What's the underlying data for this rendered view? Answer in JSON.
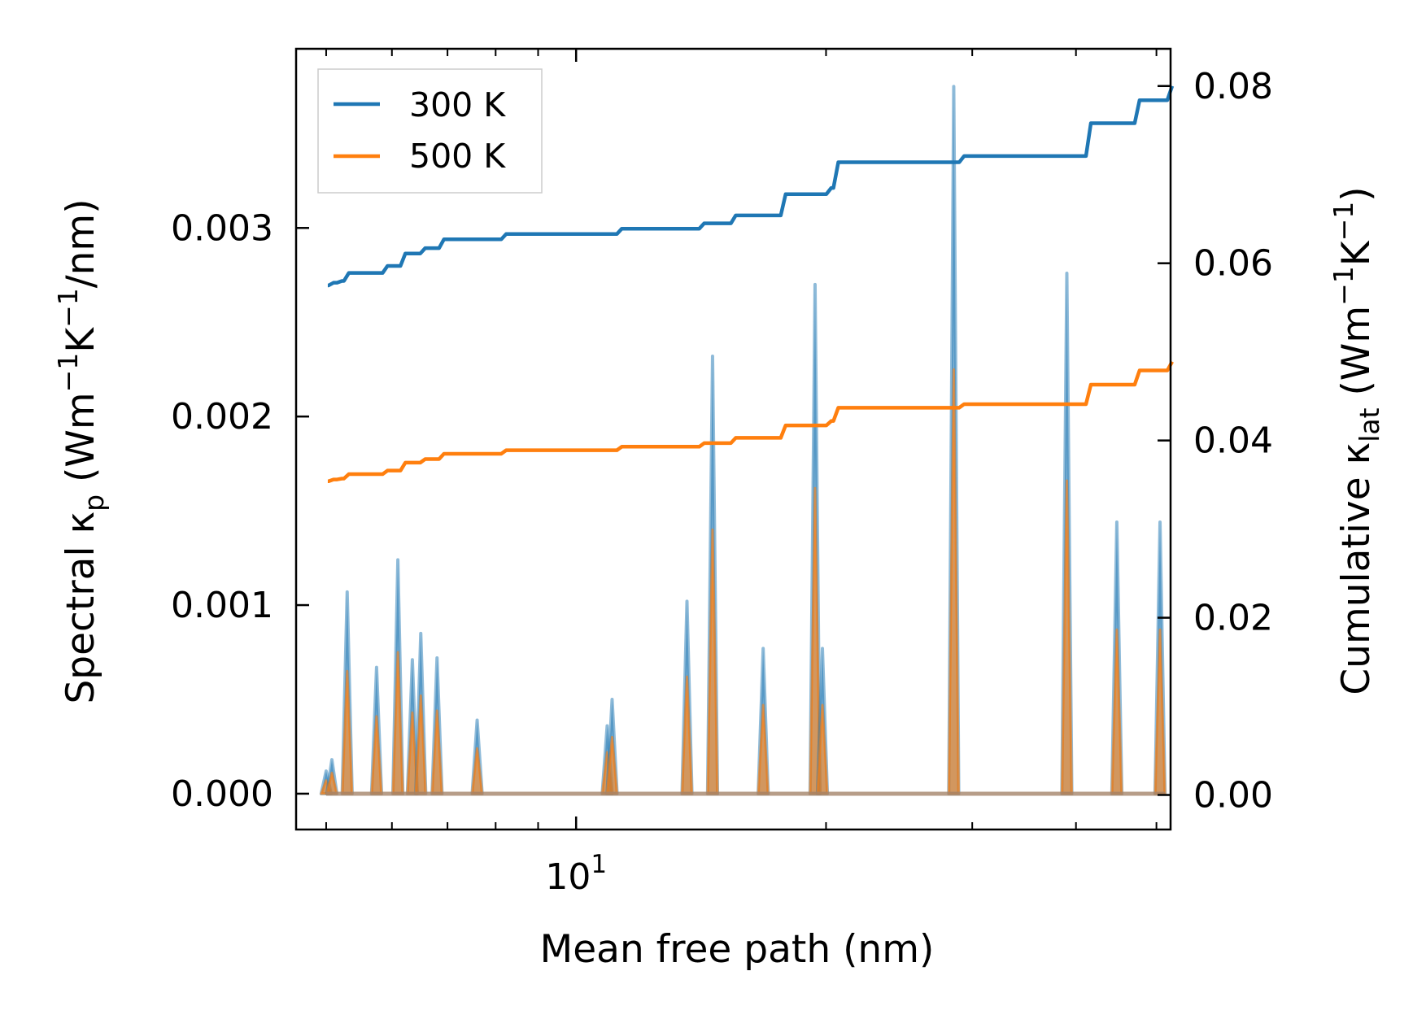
{
  "chart_data": {
    "type": "line",
    "x_scale": "log",
    "xlabel": "Mean free path (nm)",
    "x_tick_labels": [
      {
        "base": "10",
        "exp": "1",
        "value": 10
      }
    ],
    "xlim": [
      4.6,
      52
    ],
    "ylabel_left": {
      "prefix": "Spectral κ",
      "sub": "p",
      "units": " (Wm",
      "sup1": "−1",
      "mid": "K",
      "sup2": "−1",
      "end": "/nm)"
    },
    "ylabel_right": {
      "prefix": "Cumulative κ",
      "sub": "lat",
      "units": " (Wm",
      "sup1": "−1",
      "mid": "K",
      "sup2": "−1",
      "end": ")"
    },
    "ylim_left": [
      -0.00019,
      0.00395
    ],
    "ylim_right": [
      -0.0039,
      0.0842
    ],
    "yticks_left": [
      "0.000",
      "0.001",
      "0.002",
      "0.003"
    ],
    "yticks_left_values": [
      0,
      0.001,
      0.002,
      0.003
    ],
    "yticks_right": [
      "0.00",
      "0.02",
      "0.04",
      "0.06",
      "0.08"
    ],
    "yticks_right_values": [
      0,
      0.02,
      0.04,
      0.06,
      0.08
    ],
    "colors": {
      "s300": "#1f77b4",
      "s500": "#ff7f0e"
    },
    "legend": {
      "placement": "upper-left",
      "entries": [
        "300 K",
        "500 K"
      ]
    },
    "spectral": {
      "mfp": [
        5.0,
        5.08,
        5.3,
        5.75,
        6.1,
        6.35,
        6.5,
        6.8,
        7.6,
        10.9,
        11.05,
        13.6,
        14.6,
        16.8,
        19.4,
        19.8,
        28.5,
        39.0,
        44.8,
        50.5
      ],
      "s300": [
        0.00012,
        0.00018,
        0.00107,
        0.00067,
        0.00124,
        0.00071,
        0.00085,
        0.00072,
        0.00039,
        0.00036,
        0.0005,
        0.00102,
        0.00232,
        0.00077,
        0.0027,
        0.00077,
        0.00375,
        0.00276,
        0.00144,
        0.00144
      ],
      "s500": [
        7e-05,
        0.00011,
        0.00065,
        0.00041,
        0.00075,
        0.00043,
        0.00052,
        0.00044,
        0.00024,
        0.00022,
        0.0003,
        0.00062,
        0.0014,
        0.00047,
        0.00162,
        0.00047,
        0.00225,
        0.00166,
        0.00087,
        0.00087
      ]
    },
    "cumulative": {
      "s300": {
        "x": [
          5.0,
          5.08,
          5.2,
          5.3,
          5.9,
          6.2,
          6.55,
          6.9,
          8.2,
          11.3,
          14.2,
          15.5,
          17.8,
          20.2,
          20.6,
          29.2,
          41.5,
          47.5,
          52.0
        ],
        "y": [
          0.0575,
          0.0578,
          0.058,
          0.0589,
          0.0597,
          0.0611,
          0.0617,
          0.0627,
          0.0633,
          0.0639,
          0.0645,
          0.0654,
          0.0678,
          0.0685,
          0.0714,
          0.0721,
          0.0758,
          0.0784,
          0.08
        ]
      },
      "s500": {
        "x": [
          5.0,
          5.08,
          5.2,
          5.3,
          5.9,
          6.2,
          6.55,
          6.9,
          8.2,
          11.3,
          14.2,
          15.5,
          17.8,
          20.2,
          20.6,
          29.2,
          41.5,
          47.5,
          52.0
        ],
        "y": [
          0.0354,
          0.0356,
          0.0357,
          0.0362,
          0.0366,
          0.0375,
          0.0379,
          0.0385,
          0.0389,
          0.0393,
          0.0397,
          0.0403,
          0.0417,
          0.0422,
          0.0437,
          0.0441,
          0.0463,
          0.0479,
          0.0489
        ]
      }
    }
  }
}
